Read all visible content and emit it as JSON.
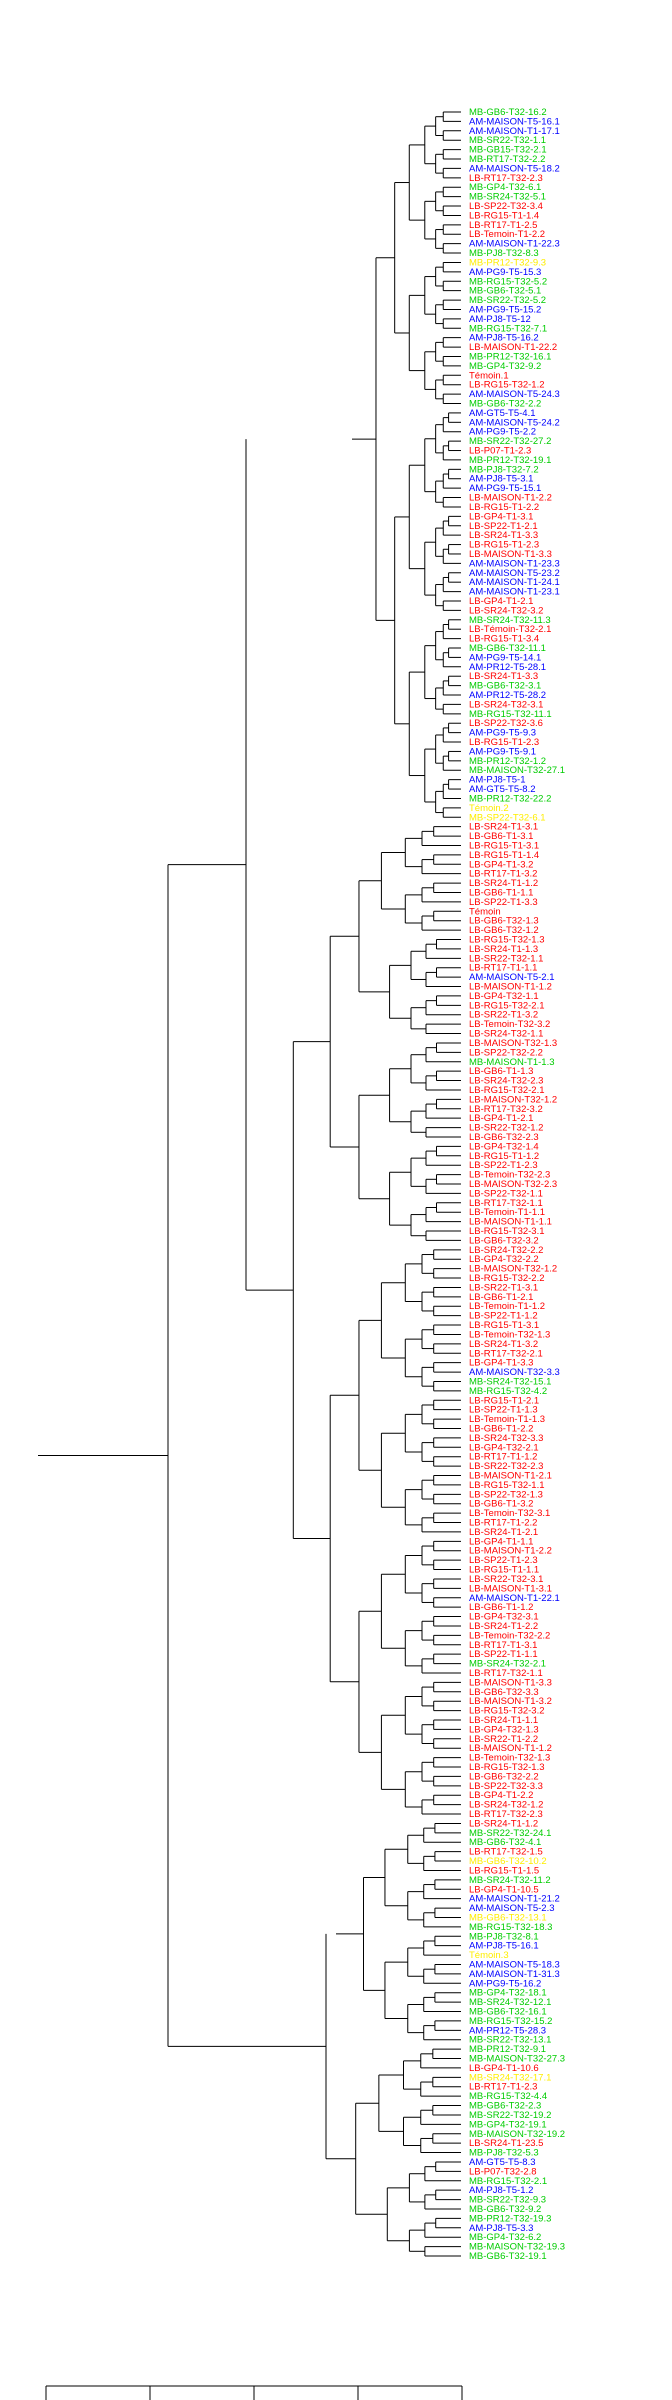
{
  "chart_data": {
    "type": "dendrogram",
    "title": "",
    "xlabel": "",
    "ylabel": "",
    "xlim": [
      0,
      4
    ],
    "x_ticks": [
      "",
      "",
      "",
      "",
      ""
    ],
    "colors": {
      "LB": "#ff0000",
      "AM": "#0000ff",
      "MB": "#00cc00",
      "ref": "#ffee00"
    },
    "leaves": [
      [
        "MB-GB6-T32-16.2",
        "MB"
      ],
      [
        "AM-MAISON-T5-16.1",
        "AM"
      ],
      [
        "AM-MAISON-T1-17.1",
        "AM"
      ],
      [
        "MB-SR22-T32-1.1",
        "MB"
      ],
      [
        "MB-GB15-T32-2.1",
        "MB"
      ],
      [
        "MB-RT17-T32-2.2",
        "MB"
      ],
      [
        "AM-MAISON-T5-18.2",
        "AM"
      ],
      [
        "LB-RT17-T32-2.3",
        "LB"
      ],
      [
        "MB-GP4-T32-6.1",
        "MB"
      ],
      [
        "MB-SR24-T32-5.1",
        "MB"
      ],
      [
        "LB-SP22-T32-3.4",
        "LB"
      ],
      [
        "LB-RG15-T1-1.4",
        "LB"
      ],
      [
        "LB-RT17-T1-2.5",
        "LB"
      ],
      [
        "LB-Temoin-T1-2.2",
        "LB"
      ],
      [
        "AM-MAISON-T1-22.3",
        "AM"
      ],
      [
        "MB-PJ8-T32-8.3",
        "MB"
      ],
      [
        "MB-PR12-T32-9.3",
        "ref"
      ],
      [
        "AM-PG9-T5-15.3",
        "AM"
      ],
      [
        "MB-RG15-T32-5.2",
        "MB"
      ],
      [
        "MB-GB6-T32-5.1",
        "MB"
      ],
      [
        "MB-SR22-T32-5.2",
        "MB"
      ],
      [
        "AM-PG9-T5-15.2",
        "AM"
      ],
      [
        "AM-PJ8-T5-12",
        "AM"
      ],
      [
        "MB-RG15-T32-7.1",
        "MB"
      ],
      [
        "AM-PJ8-T5-16.2",
        "AM"
      ],
      [
        "LB-MAISON-T1-22.2",
        "LB"
      ],
      [
        "MB-PR12-T32-16.1",
        "MB"
      ],
      [
        "MB-GP4-T32-9.2",
        "MB"
      ],
      [
        "Témoin.1",
        "LB"
      ],
      [
        "LB-RG15-T32-1.2",
        "LB"
      ],
      [
        "AM-MAISON-T5-24.3",
        "AM"
      ],
      [
        "MB-GB6-T32-2.2",
        "MB"
      ],
      [
        "AM-GT5-T5-4.1",
        "AM"
      ],
      [
        "AM-MAISON-T5-24.2",
        "AM"
      ],
      [
        "AM-PG9-T5-2.2",
        "AM"
      ],
      [
        "MB-SR22-T32-27.2",
        "MB"
      ],
      [
        "LB-P07-T1-2.3",
        "LB"
      ],
      [
        "MB-PR12-T32-19.1",
        "MB"
      ],
      [
        "MB-PJ8-T32-7.2",
        "MB"
      ],
      [
        "AM-PJ8-T5-3.1",
        "AM"
      ],
      [
        "AM-PG9-T5-15.1",
        "AM"
      ],
      [
        "LB-MAISON-T1-2.2",
        "LB"
      ],
      [
        "LB-RG15-T1-2.2",
        "LB"
      ],
      [
        "LB-GP4-T1-3.1",
        "LB"
      ],
      [
        "LB-SP22-T1-2.1",
        "LB"
      ],
      [
        "LB-SR24-T1-3.3",
        "LB"
      ],
      [
        "LB-RG15-T1-2.3",
        "LB"
      ],
      [
        "LB-MAISON-T1-3.3",
        "LB"
      ],
      [
        "AM-MAISON-T1-23.3",
        "AM"
      ],
      [
        "AM-MAISON-T5-23.2",
        "AM"
      ],
      [
        "AM-MAISON-T1-24.1",
        "AM"
      ],
      [
        "AM-MAISON-T1-23.1",
        "AM"
      ],
      [
        "LB-GP4-T1-2.1",
        "LB"
      ],
      [
        "LB-SR24-T32-3.2",
        "LB"
      ],
      [
        "MB-SR24-T32-11.3",
        "MB"
      ],
      [
        "LB-Témoin-T32-2.1",
        "LB"
      ],
      [
        "LB-RG15-T1-3.4",
        "LB"
      ],
      [
        "MB-GB6-T32-11.1",
        "MB"
      ],
      [
        "AM-PG9-T5-14.1",
        "AM"
      ],
      [
        "AM-PR12-T5-28.1",
        "AM"
      ],
      [
        "LB-SR24-T1-3.3",
        "LB"
      ],
      [
        "MB-GB6-T32-3.1",
        "MB"
      ],
      [
        "AM-PR12-T5-28.2",
        "AM"
      ],
      [
        "LB-SR24-T32-3.1",
        "LB"
      ],
      [
        "MB-RG15-T32-11.1",
        "MB"
      ],
      [
        "LB-SP22-T32-3.6",
        "LB"
      ],
      [
        "AM-PG9-T5-9.3",
        "AM"
      ],
      [
        "LB-RG15-T1-2.3",
        "LB"
      ],
      [
        "AM-PG9-T5-9.1",
        "AM"
      ],
      [
        "MB-PR12-T32-1.2",
        "MB"
      ],
      [
        "MB-MAISON-T32-27.1",
        "MB"
      ],
      [
        "AM-PJ8-T5-1",
        "AM"
      ],
      [
        "AM-GT5-T5-8.2",
        "AM"
      ],
      [
        "MB-PR12-T32-22.2",
        "MB"
      ],
      [
        "Témoin.2",
        "ref"
      ],
      [
        "MB-SP22-T32-6.1",
        "ref"
      ],
      [
        "LB-SR24-T1-3.1",
        "LB"
      ],
      [
        "LB-GB6-T1-3.1",
        "LB"
      ],
      [
        "LB-RG15-T1-3.1",
        "LB"
      ],
      [
        "LB-RG15-T1-1.4",
        "LB"
      ],
      [
        "LB-GP4-T1-3.2",
        "LB"
      ],
      [
        "LB-RT17-T1-3.2",
        "LB"
      ],
      [
        "LB-SR24-T1-1.2",
        "LB"
      ],
      [
        "LB-GB6-T1-1.1",
        "LB"
      ],
      [
        "LB-SP22-T1-3.3",
        "LB"
      ],
      [
        "Témoin",
        "LB"
      ],
      [
        "LB-GB6-T32-1.3",
        "LB"
      ],
      [
        "LB-GB6-T32-1.2",
        "LB"
      ],
      [
        "LB-RG15-T32-1.3",
        "LB"
      ],
      [
        "LB-SR24-T1-1.3",
        "LB"
      ],
      [
        "LB-SR22-T32-1.1",
        "LB"
      ],
      [
        "LB-RT17-T1-1.1",
        "LB"
      ],
      [
        "AM-MAISON-T5-2.1",
        "AM"
      ],
      [
        "LB-MAISON-T1-1.2",
        "LB"
      ],
      [
        "LB-GP4-T32-1.1",
        "LB"
      ],
      [
        "LB-RG15-T32-2.1",
        "LB"
      ],
      [
        "LB-SR22-T1-3.2",
        "LB"
      ],
      [
        "LB-Temoin-T32-3.2",
        "LB"
      ],
      [
        "LB-SR24-T32-1.1",
        "LB"
      ],
      [
        "LB-MAISON-T32-1.3",
        "LB"
      ],
      [
        "LB-SP22-T32-2.2",
        "LB"
      ],
      [
        "MB-MAISON-T1-1.3",
        "MB"
      ],
      [
        "LB-GB6-T1-1.3",
        "LB"
      ],
      [
        "LB-SR24-T32-2.3",
        "LB"
      ],
      [
        "LB-RG15-T32-2.1",
        "LB"
      ],
      [
        "LB-MAISON-T32-1.2",
        "LB"
      ],
      [
        "LB-RT17-T32-3.2",
        "LB"
      ],
      [
        "LB-GP4-T1-2.1",
        "LB"
      ],
      [
        "LB-SR22-T32-1.2",
        "LB"
      ],
      [
        "LB-GB6-T32-2.3",
        "LB"
      ],
      [
        "LB-GP4-T32-1.4",
        "LB"
      ],
      [
        "LB-RG15-T1-1.2",
        "LB"
      ],
      [
        "LB-SP22-T1-2.3",
        "LB"
      ],
      [
        "LB-Temoin-T32-2.3",
        "LB"
      ],
      [
        "LB-MAISON-T32-2.3",
        "LB"
      ],
      [
        "LB-SP22-T32-1.1",
        "LB"
      ],
      [
        "LB-RT17-T32-1.1",
        "LB"
      ],
      [
        "LB-Temoin-T1-1.1",
        "LB"
      ],
      [
        "LB-MAISON-T1-1.1",
        "LB"
      ],
      [
        "LB-RG15-T32-3.1",
        "LB"
      ],
      [
        "LB-GB6-T32-3.2",
        "LB"
      ],
      [
        "LB-SR24-T32-2.2",
        "LB"
      ],
      [
        "LB-GP4-T32-2.2",
        "LB"
      ],
      [
        "LB-MAISON-T32-1.2",
        "LB"
      ],
      [
        "LB-RG15-T32-2.2",
        "LB"
      ],
      [
        "LB-SR22-T1-3.1",
        "LB"
      ],
      [
        "LB-GB6-T1-2.1",
        "LB"
      ],
      [
        "LB-Temoin-T1-1.2",
        "LB"
      ],
      [
        "LB-SP22-T1-1.2",
        "LB"
      ],
      [
        "LB-RG15-T1-3.1",
        "LB"
      ],
      [
        "LB-Temoin-T32-1.3",
        "LB"
      ],
      [
        "LB-SR24-T1-3.2",
        "LB"
      ],
      [
        "LB-RT17-T32-2.1",
        "LB"
      ],
      [
        "LB-GP4-T1-3.3",
        "LB"
      ],
      [
        "AM-MAISON-T32-3.3",
        "AM"
      ],
      [
        "MB-SR24-T32-15.1",
        "MB"
      ],
      [
        "MB-RG15-T32-4.2",
        "MB"
      ],
      [
        "LB-RG15-T1-2.1",
        "LB"
      ],
      [
        "LB-SP22-T1-1.3",
        "LB"
      ],
      [
        "LB-Temoin-T1-1.3",
        "LB"
      ],
      [
        "LB-GB6-T1-2.2",
        "LB"
      ],
      [
        "LB-SR24-T32-3.3",
        "LB"
      ],
      [
        "LB-GP4-T32-2.1",
        "LB"
      ],
      [
        "LB-RT17-T1-1.2",
        "LB"
      ],
      [
        "LB-SR22-T32-2.3",
        "LB"
      ],
      [
        "LB-MAISON-T1-2.1",
        "LB"
      ],
      [
        "LB-RG15-T32-1.1",
        "LB"
      ],
      [
        "LB-SP22-T32-1.3",
        "LB"
      ],
      [
        "LB-GB6-T1-3.2",
        "LB"
      ],
      [
        "LB-Temoin-T32-3.1",
        "LB"
      ],
      [
        "LB-RT17-T1-2.2",
        "LB"
      ],
      [
        "LB-SR24-T1-2.1",
        "LB"
      ],
      [
        "LB-GP4-T1-1.1",
        "LB"
      ],
      [
        "LB-MAISON-T1-2.2",
        "LB"
      ],
      [
        "LB-SP22-T1-2.3",
        "LB"
      ],
      [
        "LB-RG15-T1-1.1",
        "LB"
      ],
      [
        "LB-SR22-T32-3.1",
        "LB"
      ],
      [
        "LB-MAISON-T1-3.1",
        "LB"
      ],
      [
        "AM-MAISON-T1-22.1",
        "AM"
      ],
      [
        "LB-GB6-T1-1.2",
        "LB"
      ],
      [
        "LB-GP4-T32-3.1",
        "LB"
      ],
      [
        "LB-SR24-T1-2.2",
        "LB"
      ],
      [
        "LB-Temoin-T32-2.2",
        "LB"
      ],
      [
        "LB-RT17-T1-3.1",
        "LB"
      ],
      [
        "LB-SP22-T1-1.1",
        "LB"
      ],
      [
        "MB-SR24-T32-2.1",
        "MB"
      ],
      [
        "LB-RT17-T32-1.1",
        "LB"
      ],
      [
        "LB-MAISON-T1-3.3",
        "LB"
      ],
      [
        "LB-GB6-T32-3.3",
        "LB"
      ],
      [
        "LB-MAISON-T1-3.2",
        "LB"
      ],
      [
        "LB-RG15-T32-3.2",
        "LB"
      ],
      [
        "LB-SR24-T1-1.1",
        "LB"
      ],
      [
        "LB-GP4-T32-1.3",
        "LB"
      ],
      [
        "LB-SR22-T1-2.2",
        "LB"
      ],
      [
        "LB-MAISON-T1-1.2",
        "LB"
      ],
      [
        "LB-Temoin-T32-1.3",
        "LB"
      ],
      [
        "LB-RG15-T32-1.3",
        "LB"
      ],
      [
        "LB-GB6-T32-2.2",
        "LB"
      ],
      [
        "LB-SP22-T32-3.3",
        "LB"
      ],
      [
        "LB-GP4-T1-2.2",
        "LB"
      ],
      [
        "LB-SR24-T32-1.2",
        "LB"
      ],
      [
        "LB-RT17-T32-2.3",
        "LB"
      ],
      [
        "LB-SR24-T1-1.2",
        "LB"
      ],
      [
        "MB-SR22-T32-24.1",
        "MB"
      ],
      [
        "MB-GB6-T32-4.1",
        "MB"
      ],
      [
        "LB-RT17-T32-1.5",
        "LB"
      ],
      [
        "MB-GB6-T32-10.2",
        "ref"
      ],
      [
        "LB-RG15-T1-1.5",
        "LB"
      ],
      [
        "MB-SR24-T32-11.2",
        "MB"
      ],
      [
        "LB-GP4-T1-10.5",
        "LB"
      ],
      [
        "AM-MAISON-T1-21.2",
        "AM"
      ],
      [
        "AM-MAISON-T5-2.3",
        "AM"
      ],
      [
        "MB-GB6-T32-13.1",
        "ref"
      ],
      [
        "MB-RG15-T32-18.3",
        "MB"
      ],
      [
        "MB-PJ8-T32-8.1",
        "MB"
      ],
      [
        "AM-PJ8-T5-16.1",
        "AM"
      ],
      [
        "Témoin.3",
        "ref"
      ],
      [
        "AM-MAISON-T5-18.3",
        "AM"
      ],
      [
        "AM-MAISON-T1-31.3",
        "AM"
      ],
      [
        "AM-PG9-T5-16.2",
        "AM"
      ],
      [
        "MB-GP4-T32-18.1",
        "MB"
      ],
      [
        "MB-SR24-T32-12.1",
        "MB"
      ],
      [
        "MB-GB6-T32-16.1",
        "MB"
      ],
      [
        "MB-RG15-T32-15.2",
        "MB"
      ],
      [
        "AM-PR12-T5-28.3",
        "AM"
      ],
      [
        "MB-SR22-T32-13.1",
        "MB"
      ],
      [
        "MB-PR12-T32-9.1",
        "MB"
      ],
      [
        "MB-MAISON-T32-27.3",
        "MB"
      ],
      [
        "LB-GP4-T1-10.6",
        "LB"
      ],
      [
        "MB-SR24-T32-17.1",
        "ref"
      ],
      [
        "LB-RT17-T1-2.3",
        "LB"
      ],
      [
        "MB-RG15-T32-4.4",
        "MB"
      ],
      [
        "MB-GB6-T32-2.3",
        "MB"
      ],
      [
        "MB-SR22-T32-19.2",
        "MB"
      ],
      [
        "MB-GP4-T32-19.1",
        "MB"
      ],
      [
        "MB-MAISON-T32-19.2",
        "MB"
      ],
      [
        "LB-SR24-T1-23.5",
        "LB"
      ],
      [
        "MB-PJ8-T32-5.3",
        "MB"
      ],
      [
        "AM-GT5-T5-8.3",
        "AM"
      ],
      [
        "LB-P07-T32-2.8",
        "LB"
      ],
      [
        "MB-RG15-T32-2.1",
        "MB"
      ],
      [
        "AM-PJ8-T5-1.2",
        "AM"
      ],
      [
        "MB-SR22-T32-9.3",
        "MB"
      ],
      [
        "MB-GB6-T32-9.2",
        "MB"
      ],
      [
        "MB-PR12-T32-19.3",
        "MB"
      ],
      [
        "AM-PJ8-T5-3.3",
        "AM"
      ],
      [
        "MB-GP4-T32-6.2",
        "MB"
      ],
      [
        "MB-MAISON-T32-19.3",
        "MB"
      ],
      [
        "MB-GB6-T32-19.1",
        "MB"
      ]
    ]
  }
}
